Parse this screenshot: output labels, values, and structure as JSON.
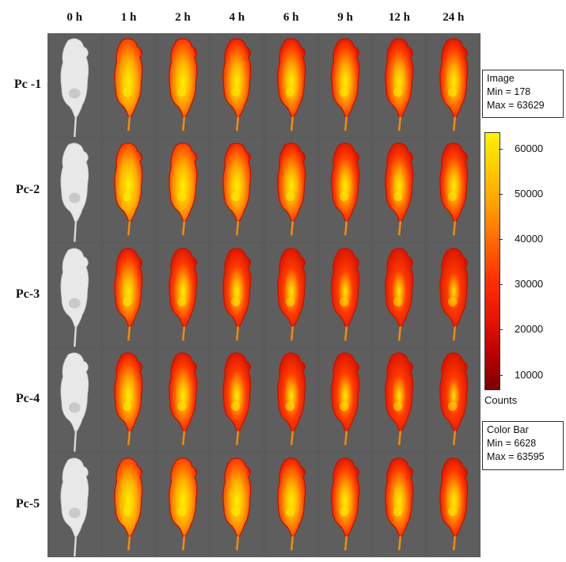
{
  "columns": [
    "0 h",
    "1 h",
    "2 h",
    "4 h",
    "6 h",
    "9 h",
    "12 h",
    "24 h"
  ],
  "rows": [
    "Pc -1",
    "Pc-2",
    "Pc-3",
    "Pc-4",
    "Pc-5"
  ],
  "image_info": {
    "title": "Image",
    "min": "Min = 178",
    "max": "Max = 63629"
  },
  "color_bar_info": {
    "title": "Color Bar",
    "min": "Min = 6628",
    "max": "Max = 63595"
  },
  "color_bar": {
    "ticks": [
      "60000",
      "50000",
      "40000",
      "30000",
      "20000",
      "10000"
    ],
    "tick_values": [
      60000,
      50000,
      40000,
      30000,
      20000,
      10000
    ],
    "range": [
      6628,
      63595
    ],
    "unit_label": "Counts",
    "colors": {
      "high": "#fff200",
      "mid": "#ff3000",
      "low": "#7a0000"
    }
  },
  "intensity": [
    [
      0,
      0.75,
      0.7,
      0.6,
      0.55,
      0.55,
      0.5,
      0.5
    ],
    [
      0,
      0.85,
      0.75,
      0.65,
      0.55,
      0.45,
      0.45,
      0.45
    ],
    [
      0,
      0.5,
      0.4,
      0.35,
      0.3,
      0.25,
      0.25,
      0.2
    ],
    [
      0,
      0.55,
      0.45,
      0.35,
      0.3,
      0.3,
      0.25,
      0.2
    ],
    [
      0,
      0.8,
      0.75,
      0.7,
      0.6,
      0.5,
      0.5,
      0.45
    ]
  ],
  "colors": {
    "background": "#5b5b5b",
    "mouse_white": "#e8e8e8"
  }
}
